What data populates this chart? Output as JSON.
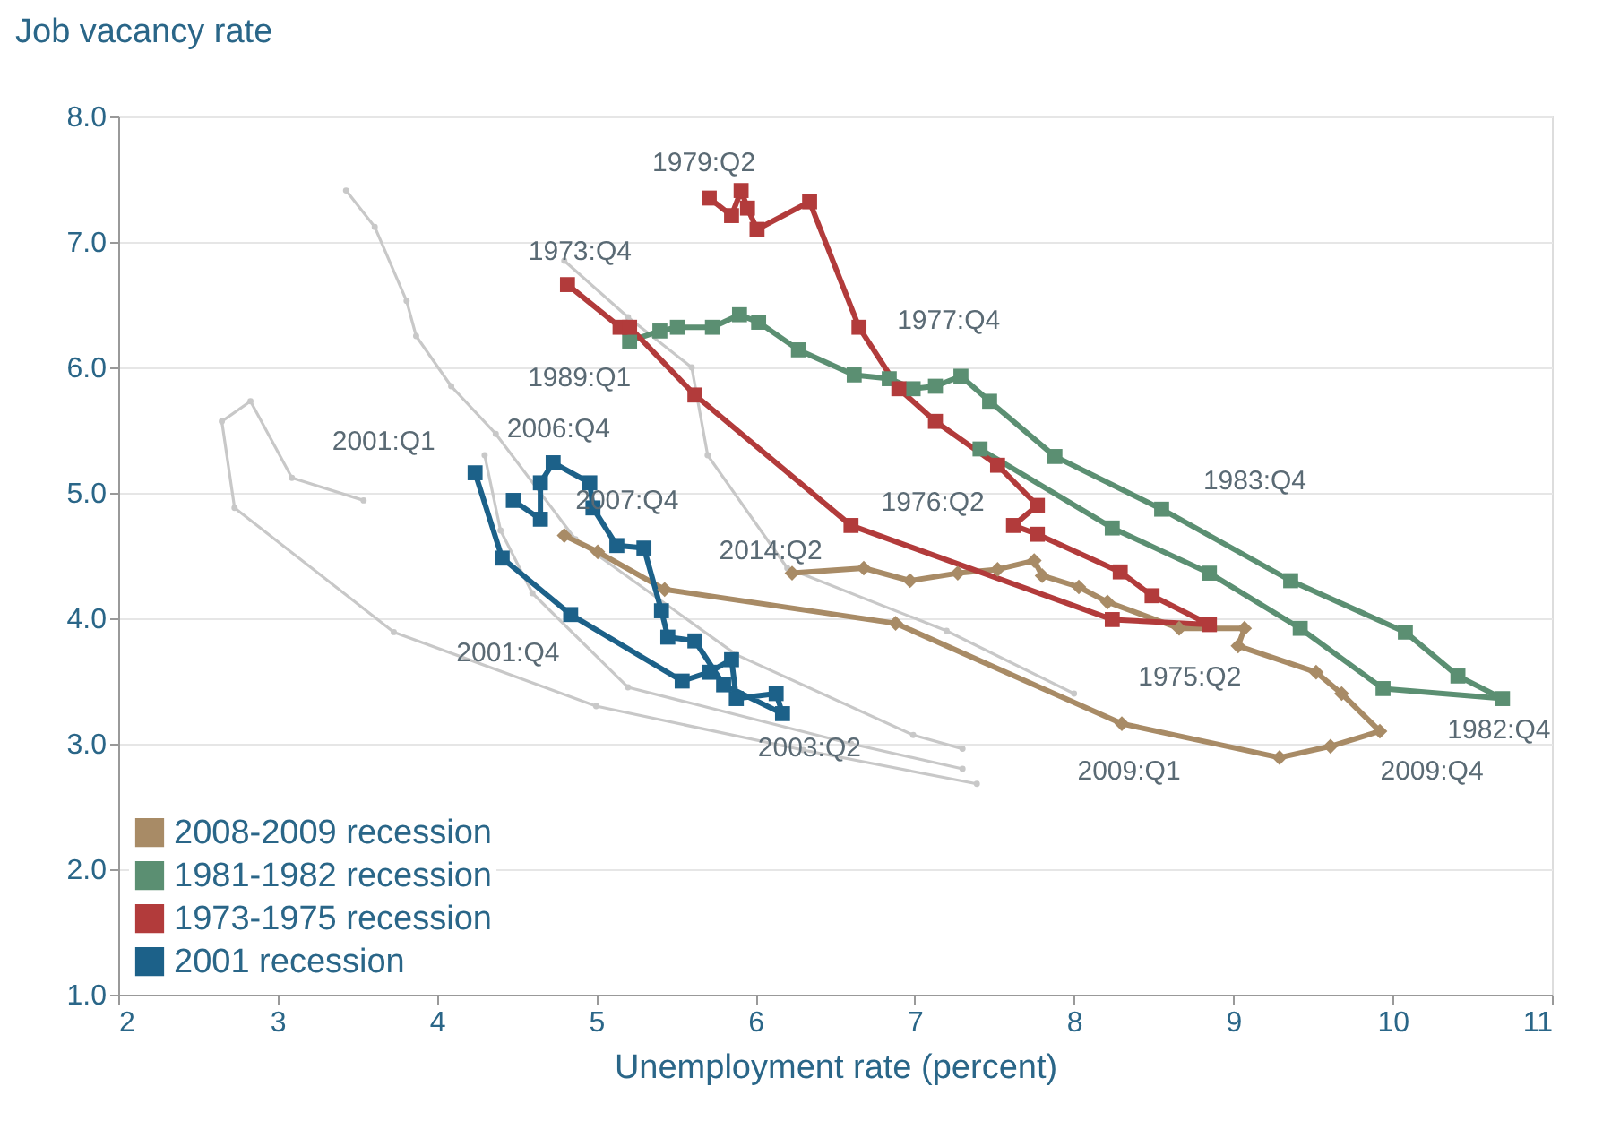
{
  "chart_data": {
    "type": "line",
    "xlabel": "Unemployment rate (percent)",
    "ylabel": "Job vacancy rate",
    "xlim": [
      2,
      11
    ],
    "xticks": [
      2,
      3,
      4,
      5,
      6,
      7,
      8,
      9,
      10,
      11
    ],
    "tick_labels": true,
    "ylim": [
      1,
      8
    ],
    "yticks": [
      {
        "value": 1,
        "label": "1.0"
      },
      {
        "value": 2,
        "label": "2.0"
      },
      {
        "value": 3,
        "label": "3.0"
      },
      {
        "value": 4,
        "label": "4.0"
      },
      {
        "value": 5,
        "label": "5.0"
      },
      {
        "value": 6,
        "label": "6.0"
      },
      {
        "value": 7,
        "label": "7.0"
      },
      {
        "value": 8,
        "label": "8.0"
      }
    ],
    "grid": "y",
    "legend": "bottom left",
    "series": [
      {
        "color": "#c8c8c8",
        "marker": "circle",
        "x": [
          3.43,
          3.61,
          3.81,
          3.87,
          4.09,
          4.37,
          4.87,
          5.88,
          6.99,
          7.3
        ],
        "values": [
          7.41,
          7.12,
          6.53,
          6.25,
          5.85,
          5.47,
          4.63,
          3.71,
          3.07,
          2.96
        ]
      },
      {
        "color": "#c8c8c8",
        "marker": "circle",
        "x": [
          3.54,
          3.09,
          2.83,
          2.65,
          2.73,
          3.73,
          5.0,
          6.3,
          7.39
        ],
        "values": [
          4.94,
          5.12,
          5.73,
          5.57,
          4.88,
          3.89,
          3.3,
          2.95,
          2.68
        ]
      },
      {
        "color": "#c8c8c8",
        "marker": "circle",
        "x": [
          4.8,
          5.2,
          5.6,
          5.7,
          6.2,
          7.2,
          8.0
        ],
        "values": [
          6.85,
          6.4,
          6.0,
          5.3,
          4.4,
          3.9,
          3.4
        ]
      },
      {
        "color": "#c8c8c8",
        "marker": "circle",
        "x": [
          4.3,
          4.4,
          4.6,
          5.2,
          6.6,
          7.3
        ],
        "values": [
          5.3,
          4.7,
          4.2,
          3.45,
          3.0,
          2.8
        ]
      },
      {
        "name": "2008-2009 recession",
        "color": "#a88b66",
        "marker": "diamond",
        "x": [
          4.8,
          5.01,
          5.43,
          6.88,
          8.3,
          9.29,
          9.61,
          9.92,
          9.68,
          9.52,
          9.03,
          9.07,
          8.66,
          8.21,
          8.03,
          7.8,
          7.75,
          7.52,
          7.27,
          6.97,
          6.68,
          6.23
        ],
        "values": [
          4.66,
          4.53,
          4.23,
          3.96,
          3.16,
          2.89,
          2.98,
          3.1,
          3.4,
          3.57,
          3.78,
          3.92,
          3.92,
          4.13,
          4.25,
          4.34,
          4.46,
          4.39,
          4.36,
          4.3,
          4.4,
          4.36
        ]
      },
      {
        "name": "1981-1982 recession",
        "color": "#5b8f72",
        "marker": "square",
        "x": [
          5.21,
          5.4,
          5.51,
          5.73,
          5.9,
          6.02,
          6.27,
          6.62,
          6.84,
          6.99,
          7.13,
          7.29,
          7.47,
          7.88,
          8.55,
          9.36,
          10.08,
          10.41,
          10.69,
          9.94,
          9.42,
          8.85,
          8.24,
          7.41
        ],
        "values": [
          6.21,
          6.29,
          6.32,
          6.32,
          6.42,
          6.36,
          6.14,
          5.94,
          5.91,
          5.83,
          5.85,
          5.93,
          5.73,
          5.29,
          4.87,
          4.3,
          3.89,
          3.54,
          3.36,
          3.44,
          3.92,
          4.36,
          4.72,
          5.35
        ]
      },
      {
        "name": "1973-1975 recession",
        "color": "#b23b3b",
        "marker": "square",
        "x": [
          4.82,
          5.15,
          5.21,
          5.62,
          6.6,
          8.24,
          8.85,
          8.49,
          8.29,
          7.77,
          7.62,
          7.77,
          7.52,
          7.13,
          6.9,
          6.65,
          6.34,
          6.01,
          5.95,
          5.91,
          5.85,
          5.71
        ],
        "values": [
          6.66,
          6.32,
          6.32,
          5.78,
          4.74,
          3.99,
          3.95,
          4.18,
          4.37,
          4.67,
          4.74,
          4.9,
          5.22,
          5.57,
          5.83,
          6.32,
          7.32,
          7.1,
          7.27,
          7.41,
          7.21,
          7.35
        ]
      },
      {
        "name": "2001 recession",
        "color": "#1c6189",
        "marker": "square",
        "x": [
          4.24,
          4.41,
          4.84,
          5.54,
          5.71,
          5.85,
          5.88,
          6.13,
          6.17,
          5.8,
          5.62,
          5.45,
          5.41,
          5.3,
          5.13,
          4.98,
          4.96,
          4.73,
          4.65,
          4.65,
          4.48
        ],
        "values": [
          5.16,
          4.48,
          4.03,
          3.5,
          3.57,
          3.67,
          3.36,
          3.4,
          3.24,
          3.47,
          3.82,
          3.85,
          4.06,
          4.56,
          4.58,
          4.88,
          5.08,
          5.24,
          5.08,
          4.79,
          4.94
        ]
      }
    ],
    "annotations": [
      {
        "text": "1979:Q2",
        "x": 5.71,
        "y": 7.35
      },
      {
        "text": "1973:Q4",
        "x": 4.82,
        "y": 6.66
      },
      {
        "text": "1977:Q4",
        "x": 6.65,
        "y": 6.32
      },
      {
        "text": "1989:Q1",
        "x": 5.21,
        "y": 6.21
      },
      {
        "text": "2001:Q1",
        "x": 4.24,
        "y": 5.16
      },
      {
        "text": "2006:Q4",
        "x": 4.73,
        "y": 5.24
      },
      {
        "text": "1983:Q4",
        "x": 8.55,
        "y": 4.87
      },
      {
        "text": "2007:Q4",
        "x": 4.8,
        "y": 4.66
      },
      {
        "text": "1976:Q2",
        "x": 7.62,
        "y": 4.74
      },
      {
        "text": "2014:Q2",
        "x": 6.23,
        "y": 4.36
      },
      {
        "text": "2001:Q4",
        "x": 4.84,
        "y": 4.03
      },
      {
        "text": "1975:Q2",
        "x": 8.85,
        "y": 3.95
      },
      {
        "text": "2003:Q2",
        "x": 6.17,
        "y": 3.24
      },
      {
        "text": "2009:Q1",
        "x": 8.3,
        "y": 3.16
      },
      {
        "text": "2009:Q4",
        "x": 9.92,
        "y": 3.1
      },
      {
        "text": "1982:Q4",
        "x": 10.69,
        "y": 3.36
      }
    ]
  }
}
